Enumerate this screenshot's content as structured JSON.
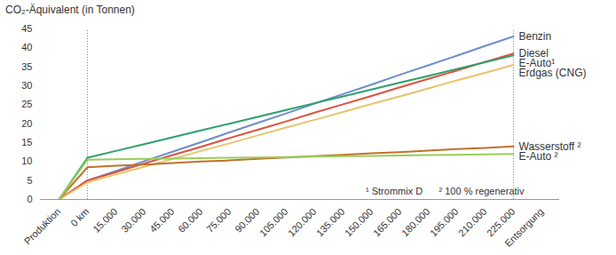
{
  "chart_data": {
    "type": "line",
    "y_label": "CO₂-Äquivalent (in Tonnen)",
    "annotations": [
      "¹ Strommix D",
      "² 100 % regenerativ"
    ],
    "categories": [
      "Produktion",
      "0 km",
      "15.000",
      "30.000",
      "45.000",
      "60.000",
      "75.000",
      "90.000",
      "105.000",
      "120.000",
      "135.000",
      "150.000",
      "165.000",
      "180.000",
      "195.000",
      "210.000",
      "225.000",
      "Entsorgung"
    ],
    "ylim": [
      0,
      45
    ],
    "yticks": [
      0,
      5,
      10,
      15,
      20,
      25,
      30,
      35,
      40,
      45
    ],
    "grid": false,
    "series": [
      {
        "name": "Benzin",
        "color": "#6b8fc9",
        "values": [
          0,
          5,
          7.5,
          10.1,
          12.6,
          15.1,
          17.7,
          20.2,
          22.7,
          25.3,
          27.8,
          30.3,
          32.9,
          35.4,
          37.9,
          40.5,
          43,
          null
        ]
      },
      {
        "name": "Diesel",
        "color": "#e0503c",
        "values": [
          0,
          5,
          7.2,
          9.5,
          11.7,
          13.9,
          16.2,
          18.4,
          20.6,
          22.9,
          25.1,
          27.3,
          29.6,
          31.8,
          34.0,
          36.3,
          38.5,
          null
        ]
      },
      {
        "name": "E-Auto¹",
        "color": "#2ea06a",
        "values": [
          0,
          11,
          12.8,
          14.6,
          16.4,
          18.2,
          20,
          21.8,
          23.6,
          25.4,
          27.2,
          29,
          30.8,
          32.6,
          34.4,
          36.2,
          38,
          null
        ]
      },
      {
        "name": "Erdgas (CNG)",
        "color": "#e8c46b",
        "values": [
          0,
          4.5,
          6.6,
          8.6,
          10.7,
          12.8,
          14.8,
          16.9,
          19.0,
          21.0,
          23.1,
          25.2,
          27.2,
          29.3,
          31.4,
          33.4,
          35.5,
          null
        ]
      },
      {
        "name": "Wasserstoff ²",
        "color": "#c0712a",
        "values": [
          0,
          8.5,
          8.9,
          9.2,
          9.6,
          10.0,
          10.3,
          10.7,
          11.1,
          11.4,
          11.8,
          12.2,
          12.5,
          12.9,
          13.3,
          13.6,
          14,
          null
        ]
      },
      {
        "name": "E-Auto ²",
        "color": "#9acd5a",
        "values": [
          0,
          10.5,
          10.6,
          10.7,
          10.8,
          10.9,
          11,
          11.1,
          11.2,
          11.3,
          11.4,
          11.5,
          11.6,
          11.7,
          11.8,
          11.9,
          12,
          null
        ]
      }
    ]
  }
}
